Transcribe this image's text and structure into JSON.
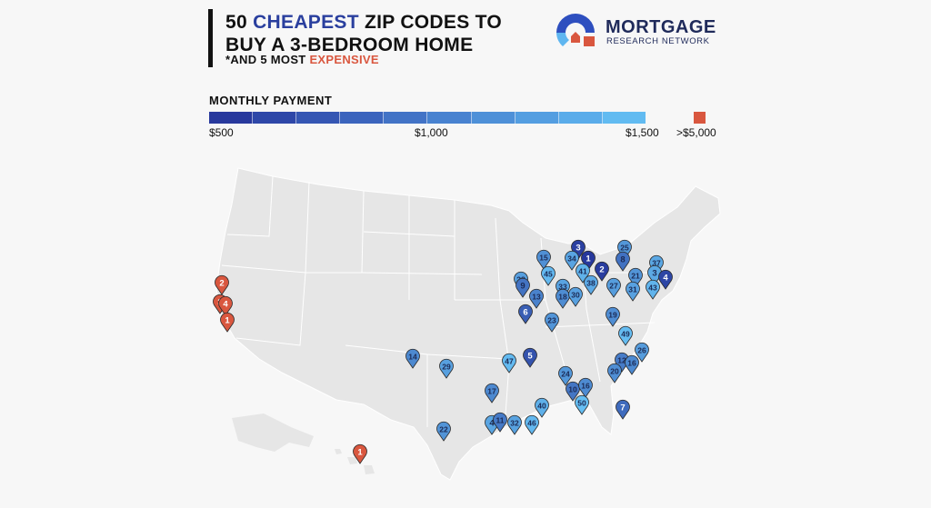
{
  "title": {
    "line1_prefix": "50 ",
    "line1_accent": "CHEAPEST",
    "line1_suffix": " ZIP CODES TO",
    "line2": "BUY A 3-BEDROOM HOME",
    "subtitle_prefix": "*AND 5 MOST ",
    "subtitle_accent": "EXPENSIVE"
  },
  "logo": {
    "line1": "MORTGAGE",
    "line2": "RESEARCH NETWORK"
  },
  "legend": {
    "title": "MONTHLY PAYMENT",
    "tick_min": "$500",
    "tick_mid": "$1,000",
    "tick_max": "$1,500",
    "tick_expensive": ">$5,000",
    "expensive_color": "#d9573f",
    "gradient_colors": [
      "#28399d",
      "#2e47a8",
      "#3556b3",
      "#3b64bd",
      "#4273c6",
      "#4882d0",
      "#4e90d8",
      "#549ee1",
      "#5aacea",
      "#62bbf1"
    ]
  },
  "markers": [
    {
      "label": "3",
      "payment": 560
    },
    {
      "label": "1",
      "payment": 500
    },
    {
      "label": "34",
      "payment": 1300
    },
    {
      "label": "41",
      "payment": 1400
    },
    {
      "label": "2",
      "payment": 530
    },
    {
      "label": "15",
      "payment": 1150
    },
    {
      "label": "45",
      "payment": 1450
    },
    {
      "label": "25",
      "payment": 1200
    },
    {
      "label": "8",
      "payment": 920
    },
    {
      "label": "37",
      "payment": 1330
    },
    {
      "label": "3",
      "payment": 1340
    },
    {
      "label": "4",
      "payment": 600
    },
    {
      "label": "21",
      "payment": 1180
    },
    {
      "label": "27",
      "payment": 1250
    },
    {
      "label": "31",
      "payment": 1280
    },
    {
      "label": "43",
      "payment": 1420
    },
    {
      "label": "38",
      "payment": 1340
    },
    {
      "label": "33",
      "payment": 1290
    },
    {
      "label": "18",
      "payment": 1120
    },
    {
      "label": "30",
      "payment": 1270
    },
    {
      "label": "28",
      "payment": 1260
    },
    {
      "label": "9",
      "payment": 940
    },
    {
      "label": "13",
      "payment": 1050
    },
    {
      "label": "6",
      "payment": 780
    },
    {
      "label": "23",
      "payment": 1190
    },
    {
      "label": "19",
      "payment": 1130
    },
    {
      "label": "49",
      "payment": 1480
    },
    {
      "label": "5",
      "payment": 700
    },
    {
      "label": "47",
      "payment": 1460
    },
    {
      "label": "14",
      "payment": 1100
    },
    {
      "label": "29",
      "payment": 1270
    },
    {
      "label": "26",
      "payment": 1240
    },
    {
      "label": "12",
      "payment": 1000
    },
    {
      "label": "16",
      "payment": 1110
    },
    {
      "label": "20",
      "payment": 1140
    },
    {
      "label": "24",
      "payment": 1200
    },
    {
      "label": "10",
      "payment": 960
    },
    {
      "label": "16",
      "payment": 1115
    },
    {
      "label": "50",
      "payment": 1500
    },
    {
      "label": "17",
      "payment": 1100
    },
    {
      "label": "40",
      "payment": 1390
    },
    {
      "label": "7",
      "payment": 880
    },
    {
      "label": "4",
      "payment": 1310
    },
    {
      "label": "11",
      "payment": 980
    },
    {
      "label": "32",
      "payment": 1285
    },
    {
      "label": "46",
      "payment": 1450
    },
    {
      "label": "22",
      "payment": 1180
    },
    {
      "label": "2",
      "payment": 6000
    },
    {
      "label": "3",
      "payment": 6000
    },
    {
      "label": "4",
      "payment": 6000
    },
    {
      "label": "1",
      "payment": 6000
    }
  ]
}
